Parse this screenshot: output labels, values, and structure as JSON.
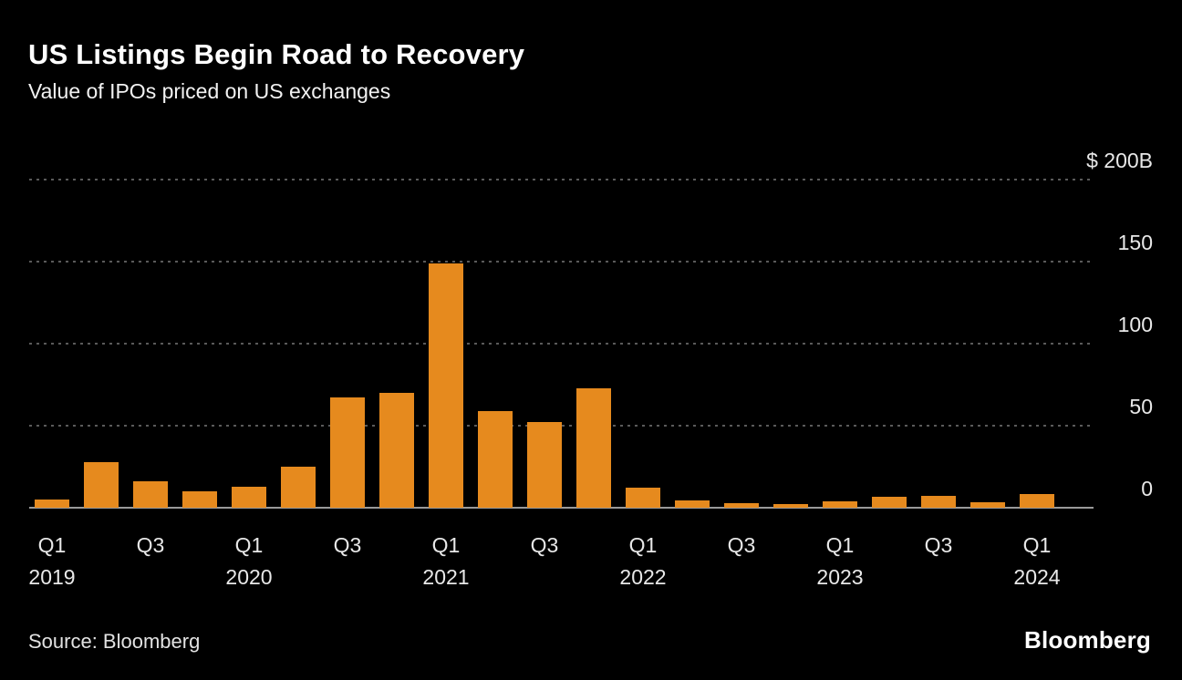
{
  "header": {
    "title": "US Listings Begin Road to Recovery",
    "subtitle": "Value of IPOs priced on US exchanges"
  },
  "footer": {
    "source": "Source: Bloomberg",
    "brand": "Bloomberg"
  },
  "chart_data": {
    "type": "bar",
    "title": "US Listings Begin Road to Recovery",
    "subtitle": "Value of IPOs priced on US exchanges",
    "unit": "billions of US dollars",
    "x": [
      "Q1 2019",
      "Q2 2019",
      "Q3 2019",
      "Q4 2019",
      "Q1 2020",
      "Q2 2020",
      "Q3 2020",
      "Q4 2020",
      "Q1 2021",
      "Q2 2021",
      "Q3 2021",
      "Q4 2021",
      "Q1 2022",
      "Q2 2022",
      "Q3 2022",
      "Q4 2022",
      "Q1 2023",
      "Q2 2023",
      "Q3 2023",
      "Q4 2023",
      "Q1 2024"
    ],
    "values": [
      5,
      28,
      16,
      10,
      13,
      25,
      67,
      70,
      149,
      59,
      52,
      73,
      12,
      4.5,
      3,
      2,
      4,
      6.5,
      7.5,
      3.5,
      8.5
    ],
    "ylim": [
      0,
      200
    ],
    "yticks": [
      {
        "value": 200,
        "label": "$ 200B"
      },
      {
        "value": 150,
        "label": "150"
      },
      {
        "value": 100,
        "label": "100"
      },
      {
        "value": 50,
        "label": "50"
      },
      {
        "value": 0,
        "label": "0"
      }
    ],
    "xticks": [
      {
        "bar_index": 0,
        "label": "Q1",
        "year": "2019"
      },
      {
        "bar_index": 2,
        "label": "Q3",
        "year": ""
      },
      {
        "bar_index": 4,
        "label": "Q1",
        "year": "2020"
      },
      {
        "bar_index": 6,
        "label": "Q3",
        "year": ""
      },
      {
        "bar_index": 8,
        "label": "Q1",
        "year": "2021"
      },
      {
        "bar_index": 10,
        "label": "Q3",
        "year": ""
      },
      {
        "bar_index": 12,
        "label": "Q1",
        "year": "2022"
      },
      {
        "bar_index": 14,
        "label": "Q3",
        "year": ""
      },
      {
        "bar_index": 16,
        "label": "Q1",
        "year": "2023"
      },
      {
        "bar_index": 18,
        "label": "Q3",
        "year": ""
      },
      {
        "bar_index": 20,
        "label": "Q1",
        "year": "2024"
      }
    ],
    "colors": {
      "bar": "#E68A1E",
      "background": "#000000",
      "gridline": "#5A5A5A",
      "baseline": "#9A9A9A",
      "title_text": "#FFFFFF",
      "tick_text": "#E8E8E8"
    },
    "grid": "horizontal-dotted",
    "legend": "none"
  }
}
